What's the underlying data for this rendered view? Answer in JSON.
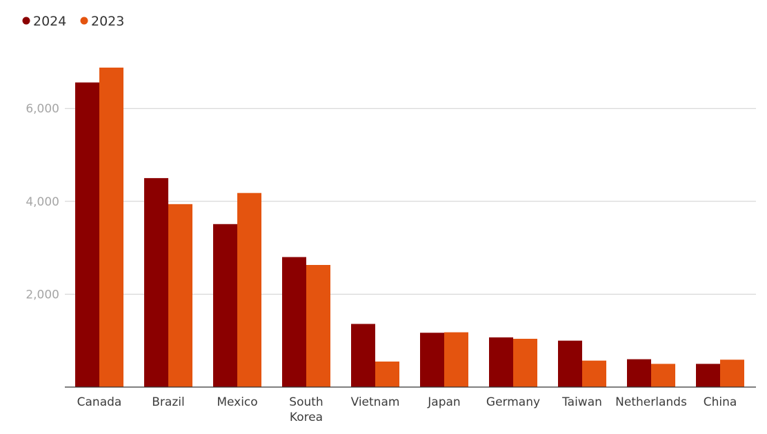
{
  "chart_data": {
    "type": "bar",
    "title": "",
    "xlabel": "",
    "ylabel": "",
    "categories": [
      "Canada",
      "Brazil",
      "Mexico",
      "South Korea",
      "Vietnam",
      "Japan",
      "Germany",
      "Taiwan",
      "Netherlands",
      "China"
    ],
    "category_lines": [
      [
        "Canada"
      ],
      [
        "Brazil"
      ],
      [
        "Mexico"
      ],
      [
        "South",
        "Korea"
      ],
      [
        "Vietnam"
      ],
      [
        "Japan"
      ],
      [
        "Germany"
      ],
      [
        "Taiwan"
      ],
      [
        "Netherlands"
      ],
      [
        "China"
      ]
    ],
    "series": [
      {
        "name": "2024",
        "color": "#8b0000",
        "values": [
          6560,
          4500,
          3510,
          2800,
          1360,
          1170,
          1070,
          1000,
          600,
          500
        ]
      },
      {
        "name": "2023",
        "color": "#e4540f",
        "values": [
          6880,
          3940,
          4180,
          2630,
          550,
          1180,
          1040,
          570,
          500,
          590
        ]
      }
    ],
    "ylim": [
      0,
      6850
    ],
    "yticks": [
      2000,
      4000,
      6000
    ],
    "ytick_labels": [
      "2,000",
      "4,000",
      "6,000"
    ],
    "grid": true,
    "legend_position": "top-left"
  }
}
